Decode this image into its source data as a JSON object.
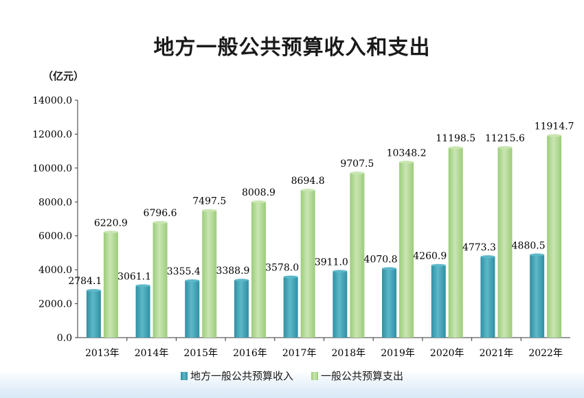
{
  "colors": {
    "revenue": "#5db8c8",
    "revenue_dark": "#2f8fa3",
    "expenditure": "#c9e6b2",
    "expenditure_dark": "#9ccc7a",
    "axis": "#333333"
  },
  "chart_data": {
    "type": "bar",
    "title": "地方一般公共预算收入和支出",
    "ylabel": "（亿元）",
    "xlabel": "",
    "ylim": [
      0,
      14000
    ],
    "yticks": [
      "0.0",
      "2000.0",
      "4000.0",
      "6000.0",
      "8000.0",
      "10000.0",
      "12000.0",
      "14000.0"
    ],
    "ytick_values": [
      0,
      2000,
      4000,
      6000,
      8000,
      10000,
      12000,
      14000
    ],
    "categories": [
      "2013年",
      "2014年",
      "2015年",
      "2016年",
      "2017年",
      "2018年",
      "2019年",
      "2020年",
      "2021年",
      "2022年"
    ],
    "series": [
      {
        "name": "地方一般公共预算收入",
        "values": [
          2784.1,
          3061.1,
          3355.4,
          3388.9,
          3578.0,
          3911.0,
          4070.8,
          4260.9,
          4773.3,
          4880.5
        ],
        "labels": [
          "2784.1",
          "3061.1",
          "3355.4",
          "3388.9",
          "3578.0",
          "3911.0",
          "4070.8",
          "4260.9",
          "4773.3",
          "4880.5"
        ]
      },
      {
        "name": "一般公共预算支出",
        "values": [
          6220.9,
          6796.6,
          7497.5,
          8008.9,
          8694.8,
          9707.5,
          10348.2,
          11198.5,
          11215.6,
          11914.7
        ],
        "labels": [
          "6220.9",
          "6796.6",
          "7497.5",
          "8008.9",
          "8694.8",
          "9707.5",
          "10348.2",
          "11198.5",
          "11215.6",
          "11914.7"
        ]
      }
    ],
    "grid": false,
    "legend": "bottom-center"
  }
}
